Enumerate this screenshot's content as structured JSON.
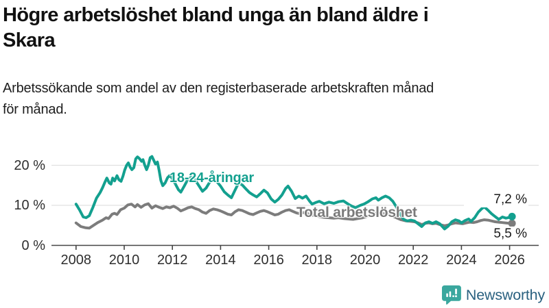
{
  "header": {
    "title_line1": "Högre arbetslöshet bland unga än bland äldre i",
    "title_line2": "Skara",
    "subtitle_line1": "Arbetssökande som andel av den registerbaserade arbetskraften månad",
    "subtitle_line2": "för månad."
  },
  "chart_data": {
    "type": "line",
    "title": "Högre arbetslöshet bland unga än bland äldre i Skara",
    "subtitle": "Arbetssökande som andel av den registerbaserade arbetskraften månad för månad.",
    "xlabel": "",
    "ylabel": "",
    "unit": "%",
    "grid": "horizontal",
    "legend_position": "inline-on-chart",
    "xlim": [
      2007.1,
      2027.2
    ],
    "ylim": [
      0,
      25.4
    ],
    "x_ticks": [
      {
        "value": 2008,
        "label": "2008"
      },
      {
        "value": 2010,
        "label": "2010"
      },
      {
        "value": 2012,
        "label": "2012"
      },
      {
        "value": 2014,
        "label": "2014"
      },
      {
        "value": 2016,
        "label": "2016"
      },
      {
        "value": 2018,
        "label": "2018"
      },
      {
        "value": 2020,
        "label": "2020"
      },
      {
        "value": 2022,
        "label": "2022"
      },
      {
        "value": 2024,
        "label": "2024"
      },
      {
        "value": 2026,
        "label": "2026"
      }
    ],
    "y_ticks": [
      {
        "value": 0,
        "label": "0 %"
      },
      {
        "value": 10,
        "label": "10 %"
      },
      {
        "value": 20,
        "label": "20 %"
      }
    ],
    "series": [
      {
        "name": "Total arbetslöshet",
        "color": "#7c7c7c",
        "end_label": "5,5 %",
        "end_value": 5.5,
        "points": [
          [
            2008.0,
            5.6
          ],
          [
            2008.2,
            4.7
          ],
          [
            2008.4,
            4.4
          ],
          [
            2008.55,
            4.3
          ],
          [
            2008.7,
            4.9
          ],
          [
            2008.9,
            5.7
          ],
          [
            2009.1,
            6.3
          ],
          [
            2009.25,
            6.9
          ],
          [
            2009.35,
            6.7
          ],
          [
            2009.5,
            7.8
          ],
          [
            2009.6,
            8.0
          ],
          [
            2009.7,
            7.7
          ],
          [
            2009.85,
            8.9
          ],
          [
            2010.0,
            9.3
          ],
          [
            2010.15,
            10.1
          ],
          [
            2010.3,
            10.3
          ],
          [
            2010.45,
            9.6
          ],
          [
            2010.55,
            10.2
          ],
          [
            2010.7,
            9.5
          ],
          [
            2010.85,
            10.1
          ],
          [
            2011.0,
            10.4
          ],
          [
            2011.15,
            9.3
          ],
          [
            2011.3,
            9.9
          ],
          [
            2011.45,
            9.5
          ],
          [
            2011.6,
            9.2
          ],
          [
            2011.75,
            9.6
          ],
          [
            2011.9,
            9.4
          ],
          [
            2012.05,
            9.8
          ],
          [
            2012.2,
            9.3
          ],
          [
            2012.35,
            8.6
          ],
          [
            2012.5,
            9.0
          ],
          [
            2012.65,
            9.4
          ],
          [
            2012.8,
            9.6
          ],
          [
            2012.95,
            9.2
          ],
          [
            2013.1,
            8.9
          ],
          [
            2013.25,
            8.3
          ],
          [
            2013.4,
            8.0
          ],
          [
            2013.55,
            8.7
          ],
          [
            2013.7,
            9.1
          ],
          [
            2013.85,
            8.9
          ],
          [
            2014.0,
            8.6
          ],
          [
            2014.15,
            8.2
          ],
          [
            2014.3,
            7.8
          ],
          [
            2014.45,
            7.6
          ],
          [
            2014.6,
            8.4
          ],
          [
            2014.75,
            8.9
          ],
          [
            2014.9,
            8.7
          ],
          [
            2015.05,
            8.3
          ],
          [
            2015.2,
            7.9
          ],
          [
            2015.35,
            7.7
          ],
          [
            2015.5,
            8.1
          ],
          [
            2015.65,
            8.5
          ],
          [
            2015.8,
            8.7
          ],
          [
            2015.95,
            8.4
          ],
          [
            2016.1,
            8.0
          ],
          [
            2016.25,
            7.6
          ],
          [
            2016.4,
            7.8
          ],
          [
            2016.55,
            8.3
          ],
          [
            2016.7,
            8.7
          ],
          [
            2016.85,
            8.9
          ],
          [
            2017.0,
            8.5
          ],
          [
            2017.15,
            8.1
          ],
          [
            2017.3,
            7.9
          ],
          [
            2017.45,
            8.2
          ],
          [
            2017.6,
            8.0
          ],
          [
            2017.75,
            7.6
          ],
          [
            2017.9,
            7.4
          ],
          [
            2018.1,
            7.2
          ],
          [
            2018.3,
            7.0
          ],
          [
            2018.5,
            6.9
          ],
          [
            2018.7,
            6.8
          ],
          [
            2018.9,
            6.9
          ],
          [
            2019.1,
            6.7
          ],
          [
            2019.3,
            6.6
          ],
          [
            2019.5,
            6.5
          ],
          [
            2019.7,
            6.7
          ],
          [
            2019.9,
            6.9
          ],
          [
            2020.1,
            7.3
          ],
          [
            2020.3,
            7.8
          ],
          [
            2020.5,
            8.1
          ],
          [
            2020.7,
            8.0
          ],
          [
            2020.9,
            7.8
          ],
          [
            2021.1,
            7.4
          ],
          [
            2021.3,
            6.9
          ],
          [
            2021.5,
            6.4
          ],
          [
            2021.7,
            6.1
          ],
          [
            2021.9,
            6.0
          ],
          [
            2022.05,
            5.9
          ],
          [
            2022.2,
            5.6
          ],
          [
            2022.35,
            5.2
          ],
          [
            2022.5,
            5.5
          ],
          [
            2022.65,
            5.6
          ],
          [
            2022.8,
            5.4
          ],
          [
            2022.95,
            5.5
          ],
          [
            2023.1,
            5.2
          ],
          [
            2023.3,
            4.9
          ],
          [
            2023.45,
            5.1
          ],
          [
            2023.6,
            5.4
          ],
          [
            2023.75,
            5.6
          ],
          [
            2023.9,
            5.5
          ],
          [
            2024.05,
            5.4
          ],
          [
            2024.2,
            5.6
          ],
          [
            2024.35,
            5.8
          ],
          [
            2024.5,
            5.7
          ],
          [
            2024.65,
            5.9
          ],
          [
            2024.8,
            6.2
          ],
          [
            2024.95,
            6.4
          ],
          [
            2025.1,
            6.3
          ],
          [
            2025.25,
            6.1
          ],
          [
            2025.4,
            5.9
          ],
          [
            2025.55,
            5.8
          ],
          [
            2025.7,
            5.7
          ],
          [
            2025.85,
            5.6
          ],
          [
            2026.0,
            5.5
          ],
          [
            2026.1,
            5.5
          ]
        ]
      },
      {
        "name": "18-24-åringar",
        "color": "#13a08f",
        "end_label": "7,2 %",
        "end_value": 7.2,
        "points": [
          [
            2008.0,
            10.3
          ],
          [
            2008.15,
            8.8
          ],
          [
            2008.3,
            7.1
          ],
          [
            2008.42,
            6.9
          ],
          [
            2008.55,
            7.4
          ],
          [
            2008.7,
            9.5
          ],
          [
            2008.85,
            11.8
          ],
          [
            2009.0,
            13.2
          ],
          [
            2009.1,
            14.4
          ],
          [
            2009.2,
            15.8
          ],
          [
            2009.28,
            16.8
          ],
          [
            2009.38,
            15.6
          ],
          [
            2009.45,
            15.3
          ],
          [
            2009.52,
            16.8
          ],
          [
            2009.6,
            16.1
          ],
          [
            2009.7,
            17.4
          ],
          [
            2009.78,
            16.4
          ],
          [
            2009.87,
            16.0
          ],
          [
            2009.95,
            17.3
          ],
          [
            2010.02,
            18.8
          ],
          [
            2010.1,
            20.0
          ],
          [
            2010.17,
            20.6
          ],
          [
            2010.25,
            19.5
          ],
          [
            2010.32,
            18.9
          ],
          [
            2010.4,
            19.4
          ],
          [
            2010.48,
            21.6
          ],
          [
            2010.55,
            22.1
          ],
          [
            2010.63,
            21.7
          ],
          [
            2010.72,
            21.0
          ],
          [
            2010.78,
            21.4
          ],
          [
            2010.85,
            20.1
          ],
          [
            2010.93,
            18.9
          ],
          [
            2011.0,
            20.0
          ],
          [
            2011.08,
            21.9
          ],
          [
            2011.15,
            22.2
          ],
          [
            2011.23,
            21.2
          ],
          [
            2011.3,
            20.3
          ],
          [
            2011.38,
            20.8
          ],
          [
            2011.45,
            18.7
          ],
          [
            2011.52,
            16.2
          ],
          [
            2011.6,
            14.9
          ],
          [
            2011.7,
            15.6
          ],
          [
            2011.8,
            16.9
          ],
          [
            2011.88,
            17.4
          ],
          [
            2011.96,
            17.0
          ],
          [
            2012.1,
            15.6
          ],
          [
            2012.25,
            13.9
          ],
          [
            2012.35,
            13.3
          ],
          [
            2012.5,
            14.9
          ],
          [
            2012.65,
            16.6
          ],
          [
            2012.8,
            17.1
          ],
          [
            2012.95,
            16.3
          ],
          [
            2013.1,
            14.9
          ],
          [
            2013.25,
            13.5
          ],
          [
            2013.4,
            14.3
          ],
          [
            2013.55,
            15.8
          ],
          [
            2013.7,
            16.5
          ],
          [
            2013.85,
            15.9
          ],
          [
            2014.0,
            14.8
          ],
          [
            2014.15,
            13.4
          ],
          [
            2014.3,
            12.6
          ],
          [
            2014.45,
            11.9
          ],
          [
            2014.6,
            13.8
          ],
          [
            2014.75,
            15.6
          ],
          [
            2014.9,
            15.1
          ],
          [
            2015.05,
            14.1
          ],
          [
            2015.2,
            13.2
          ],
          [
            2015.35,
            12.6
          ],
          [
            2015.5,
            12.1
          ],
          [
            2015.65,
            12.9
          ],
          [
            2015.8,
            13.8
          ],
          [
            2015.95,
            13.1
          ],
          [
            2016.1,
            11.6
          ],
          [
            2016.25,
            10.8
          ],
          [
            2016.4,
            11.5
          ],
          [
            2016.55,
            12.6
          ],
          [
            2016.7,
            14.2
          ],
          [
            2016.8,
            14.8
          ],
          [
            2016.95,
            13.5
          ],
          [
            2017.1,
            11.7
          ],
          [
            2017.25,
            12.3
          ],
          [
            2017.4,
            11.8
          ],
          [
            2017.55,
            12.3
          ],
          [
            2017.7,
            11.0
          ],
          [
            2017.8,
            10.3
          ],
          [
            2017.95,
            10.7
          ],
          [
            2018.1,
            11.0
          ],
          [
            2018.3,
            10.4
          ],
          [
            2018.5,
            10.8
          ],
          [
            2018.7,
            10.5
          ],
          [
            2018.9,
            10.9
          ],
          [
            2019.1,
            11.1
          ],
          [
            2019.3,
            10.3
          ],
          [
            2019.45,
            9.8
          ],
          [
            2019.6,
            9.4
          ],
          [
            2019.8,
            10.0
          ],
          [
            2019.95,
            10.3
          ],
          [
            2020.1,
            10.8
          ],
          [
            2020.3,
            11.6
          ],
          [
            2020.45,
            11.9
          ],
          [
            2020.55,
            11.3
          ],
          [
            2020.7,
            11.9
          ],
          [
            2020.85,
            12.3
          ],
          [
            2021.0,
            11.9
          ],
          [
            2021.15,
            11.0
          ],
          [
            2021.3,
            9.6
          ],
          [
            2021.45,
            7.9
          ],
          [
            2021.6,
            6.5
          ],
          [
            2021.75,
            6.1
          ],
          [
            2021.9,
            6.3
          ],
          [
            2022.05,
            6.1
          ],
          [
            2022.2,
            5.4
          ],
          [
            2022.35,
            4.7
          ],
          [
            2022.5,
            5.6
          ],
          [
            2022.65,
            5.9
          ],
          [
            2022.8,
            5.5
          ],
          [
            2022.95,
            5.9
          ],
          [
            2023.1,
            5.4
          ],
          [
            2023.3,
            4.1
          ],
          [
            2023.45,
            4.8
          ],
          [
            2023.6,
            5.9
          ],
          [
            2023.75,
            6.4
          ],
          [
            2023.9,
            6.1
          ],
          [
            2024.0,
            5.6
          ],
          [
            2024.15,
            6.2
          ],
          [
            2024.3,
            6.6
          ],
          [
            2024.4,
            6.0
          ],
          [
            2024.55,
            6.9
          ],
          [
            2024.7,
            8.3
          ],
          [
            2024.85,
            9.2
          ],
          [
            2024.95,
            9.6
          ],
          [
            2025.1,
            8.8
          ],
          [
            2025.25,
            7.9
          ],
          [
            2025.4,
            7.2
          ],
          [
            2025.55,
            6.5
          ],
          [
            2025.7,
            7.1
          ],
          [
            2025.85,
            6.8
          ],
          [
            2026.0,
            7.0
          ],
          [
            2026.1,
            7.2
          ]
        ]
      }
    ]
  },
  "branding": {
    "logo_text": "Newsworthy",
    "logo_icon": "newsworthy-speech-bubble-bars-icon",
    "icon_color": "#3aa79e",
    "text_color": "#2a6180"
  },
  "colors": {
    "young_series": "#13a08f",
    "total_series": "#7c7c7c",
    "gridline": "#e0e0e0",
    "axis": "#444444",
    "background": "#ffffff"
  }
}
